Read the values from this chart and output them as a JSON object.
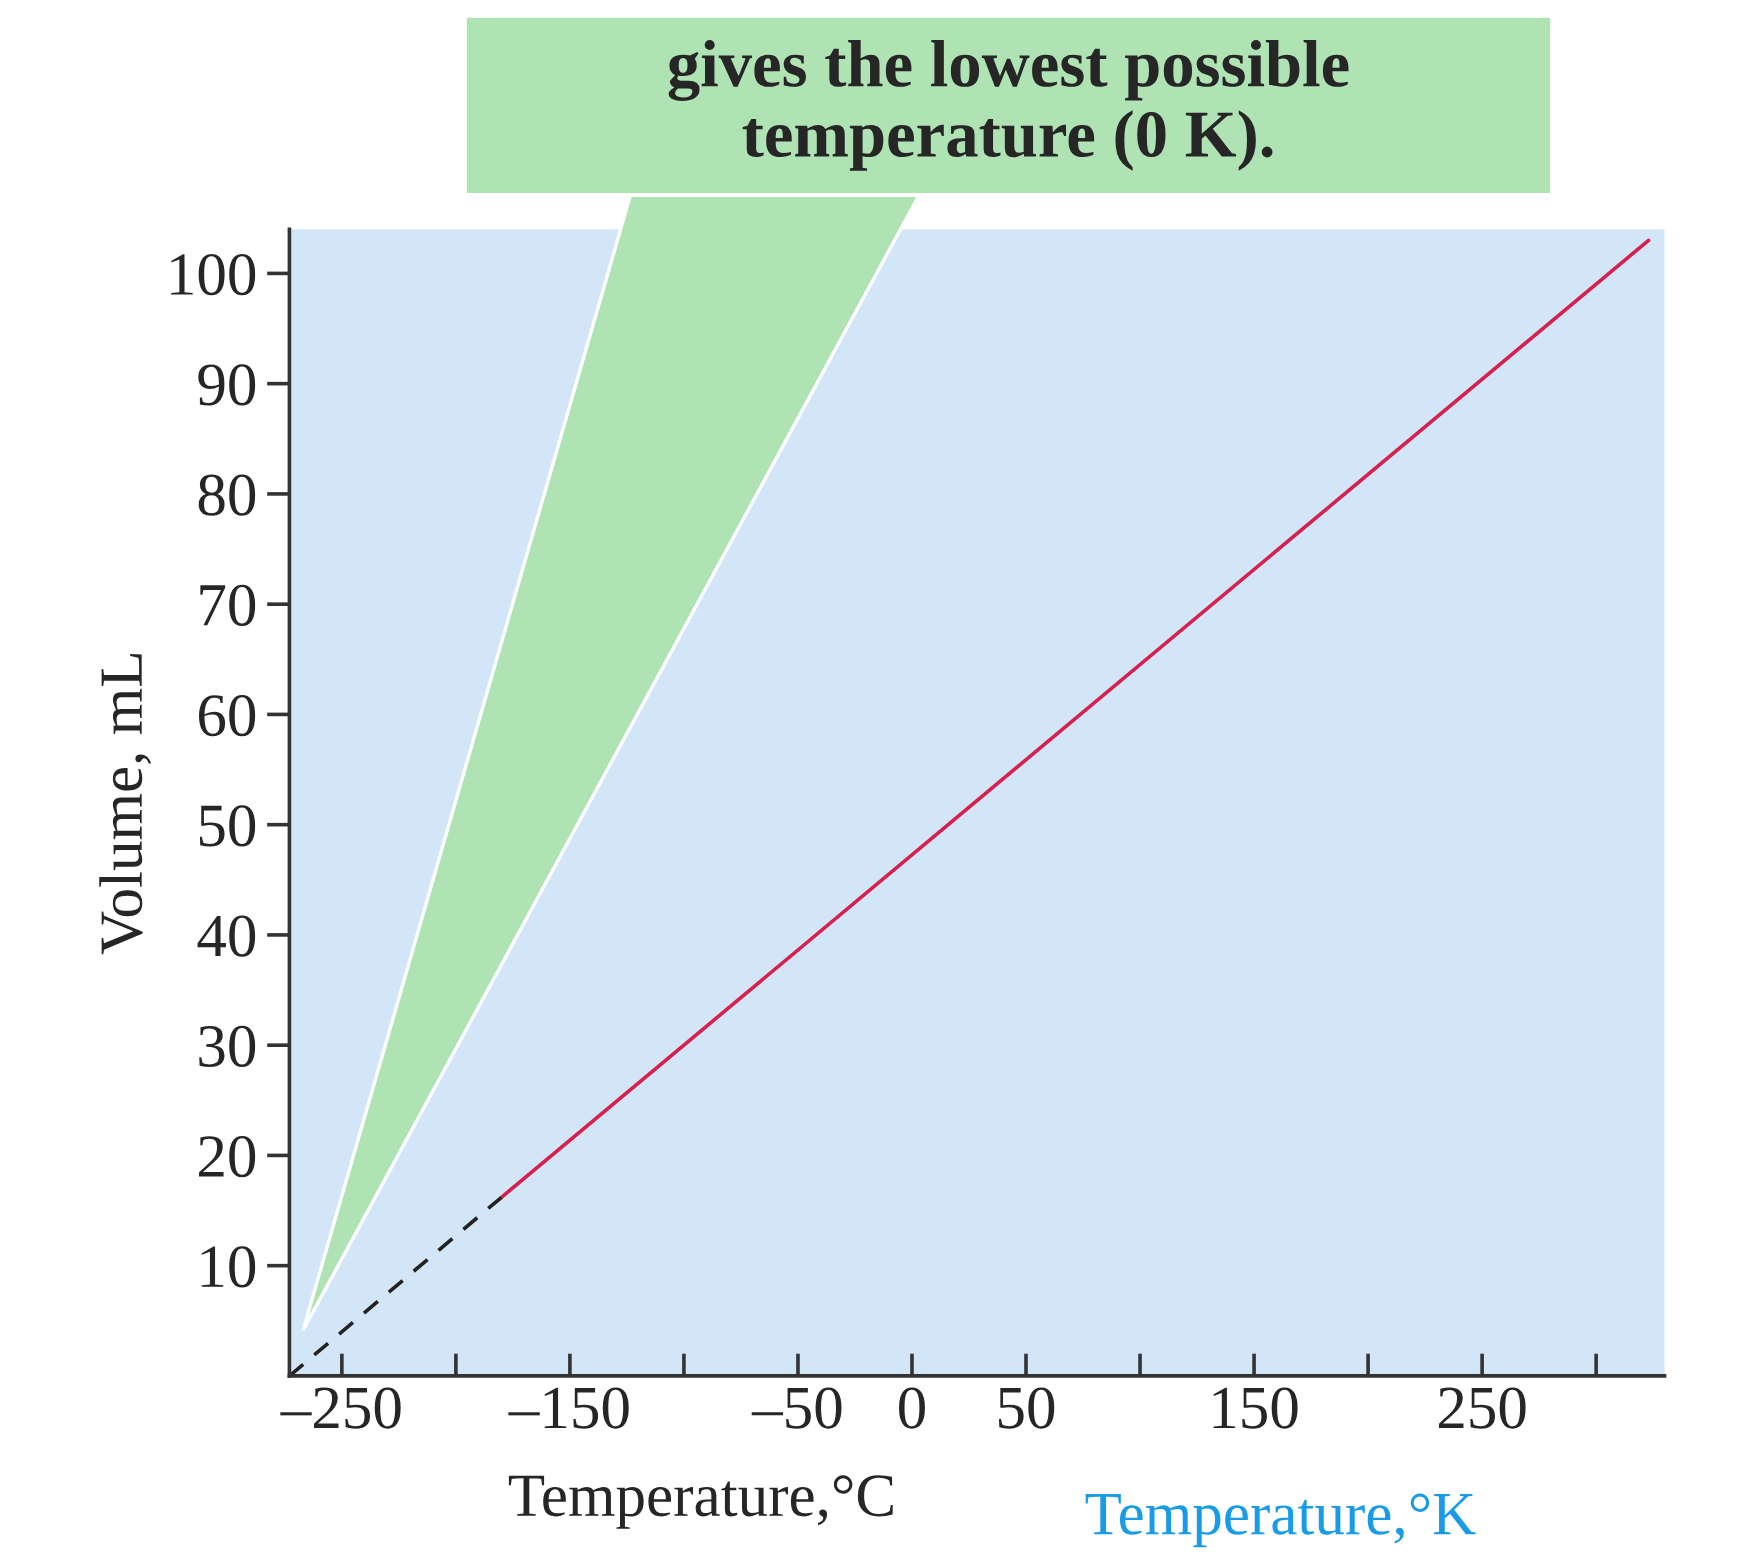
{
  "chart_data": {
    "type": "line",
    "xlabel": "Temperature,°C",
    "ylabel": "Volume, mL",
    "series": [
      {
        "color": "#d6204e",
        "x": [
          -180,
          323
        ],
        "values": [
          16.2,
          103
        ],
        "line_style": "solid"
      },
      {
        "color": "#222222",
        "x": [
          -273,
          -180
        ],
        "values": [
          0,
          16.2
        ],
        "line_style": "dashed"
      }
    ],
    "xlim": [
      -273,
      330
    ],
    "ylim": [
      0,
      104
    ],
    "xticks": [
      {
        "value": -250,
        "label": "–250"
      },
      {
        "value": -200,
        "label": null
      },
      {
        "value": -150,
        "label": "–150"
      },
      {
        "value": -100,
        "label": null
      },
      {
        "value": -50,
        "label": "–50"
      },
      0,
      50,
      {
        "value": 100,
        "label": null
      },
      150,
      {
        "value": 200,
        "label": null
      },
      250,
      {
        "value": 300,
        "label": null
      }
    ],
    "yticks": [
      10,
      20,
      30,
      40,
      50,
      60,
      70,
      80,
      90,
      100
    ],
    "grid": false,
    "legend": false,
    "marker": "none",
    "annotations": [
      "gives the lowest possible\ntemperature (0 K).",
      "Temperature,°K"
    ]
  }
}
